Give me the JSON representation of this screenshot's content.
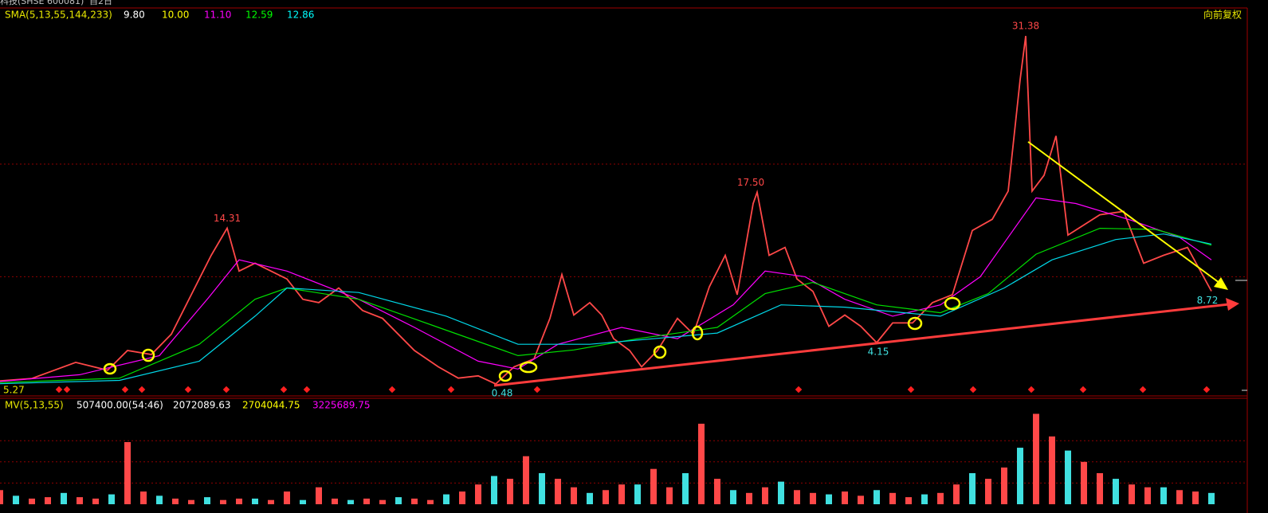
{
  "header": {
    "title": "科技(SHSE 600081)",
    "period": "自2日",
    "adjust": "向前复权",
    "corner_label": "5.27"
  },
  "chart_data": [
    {
      "type": "line",
      "legend_title": "SMA(5,13,55,144,233)",
      "legend_values": [
        9.8,
        10,
        11.1,
        12.59,
        12.86
      ],
      "legend_value_labels": [
        "9.80",
        "10.00",
        "11.10",
        "12.59",
        "12.86"
      ],
      "legend_colors": [
        "#ffffff",
        "#ffff00",
        "#ff00ff",
        "#00ff00",
        "#00ffff"
      ],
      "xlim": [
        0,
        1565
      ],
      "ylim": [
        -0.58,
        33.86
      ],
      "yticks": [
        10,
        20
      ],
      "grid": true,
      "series": [
        {
          "color": "#ff4848",
          "x": [
            0,
            40,
            95,
            135,
            160,
            190,
            215,
            240,
            265,
            285,
            300,
            320,
            360,
            380,
            400,
            425,
            455,
            480,
            520,
            550,
            575,
            600,
            622,
            645,
            670,
            690,
            705,
            720,
            740,
            755,
            770,
            790,
            805,
            825,
            850,
            870,
            890,
            910,
            925,
            945,
            950,
            965,
            985,
            1000,
            1020,
            1040,
            1060,
            1080,
            1100,
            1120,
            1145,
            1170,
            1195,
            1220,
            1245,
            1265,
            1280,
            1287,
            1295,
            1310,
            1325,
            1340,
            1380,
            1410,
            1435,
            1460,
            1490,
            1520
          ],
          "values": [
            0.76,
            0.97,
            2.4,
            1.7,
            3.45,
            3.1,
            4.9,
            8.4,
            11.9,
            14.31,
            10.5,
            11.2,
            9.8,
            8.0,
            7.7,
            9.0,
            7.0,
            6.3,
            3.45,
            2.0,
            1.0,
            1.2,
            0.48,
            2.0,
            2.7,
            6.3,
            10.2,
            6.6,
            7.7,
            6.6,
            4.5,
            3.45,
            2.0,
            3.45,
            6.3,
            4.9,
            9.1,
            11.9,
            8.4,
            16.5,
            17.5,
            11.9,
            12.6,
            9.8,
            8.7,
            5.6,
            6.6,
            5.6,
            4.15,
            5.9,
            5.9,
            7.7,
            8.4,
            14.1,
            15.1,
            17.6,
            27.5,
            31.38,
            17.6,
            19.0,
            22.5,
            13.7,
            15.5,
            15.8,
            11.2,
            11.9,
            12.6,
            8.72
          ]
        },
        {
          "color": "#ff00ff",
          "x": [
            0,
            100,
            200,
            260,
            300,
            360,
            450,
            520,
            600,
            650,
            700,
            780,
            850,
            920,
            960,
            1010,
            1060,
            1120,
            1180,
            1230,
            1270,
            1300,
            1350,
            1420,
            1480,
            1520
          ],
          "values": [
            0.7,
            1.3,
            3.0,
            8,
            11.5,
            10.5,
            8,
            5.5,
            2.5,
            1.8,
            4,
            5.5,
            4.5,
            7.5,
            10.5,
            10,
            8,
            6.5,
            7.5,
            10,
            14,
            17,
            16.5,
            15,
            13.5,
            11.5
          ]
        },
        {
          "color": "#00e000",
          "x": [
            0,
            150,
            250,
            320,
            360,
            450,
            550,
            650,
            720,
            800,
            900,
            960,
            1020,
            1100,
            1180,
            1240,
            1300,
            1380,
            1450,
            1520
          ],
          "values": [
            0.6,
            1.0,
            4,
            8,
            9,
            8,
            5.5,
            3,
            3.5,
            4.5,
            5.5,
            8.5,
            9.5,
            7.5,
            6.8,
            8.5,
            12,
            14.3,
            14.2,
            12.8
          ]
        },
        {
          "color": "#00d8e8",
          "x": [
            0,
            150,
            250,
            320,
            360,
            450,
            560,
            650,
            740,
            820,
            900,
            980,
            1060,
            1180,
            1260,
            1320,
            1400,
            1460,
            1520
          ],
          "values": [
            0.5,
            0.8,
            2.5,
            6.5,
            9,
            8.6,
            6.5,
            4,
            4,
            4.5,
            5,
            7.5,
            7.3,
            6.5,
            9,
            11.5,
            13.3,
            13.8,
            12.9
          ]
        }
      ],
      "annotations": [
        {
          "x": 285,
          "value": 14.31,
          "color": "#ff4848",
          "place": "above"
        },
        {
          "x": 942,
          "value": 17.5,
          "label": "17.50",
          "color": "#ff4848",
          "place": "above"
        },
        {
          "x": 1287,
          "value": 31.38,
          "color": "#ff4848",
          "place": "above"
        },
        {
          "x": 630,
          "value": 0.48,
          "color": "#40e0e0",
          "place": "below"
        },
        {
          "x": 1102,
          "value": 4.15,
          "color": "#40e0e0",
          "place": "below"
        },
        {
          "x": 1515,
          "value": 8.72,
          "color": "#40e0e0",
          "place": "below"
        }
      ]
    },
    {
      "type": "bar",
      "legend_title": "MV(5,13,55)",
      "legend_values": [
        507400,
        2072089.63,
        2704044.75,
        3225689.75
      ],
      "legend_value_labels": [
        "507400.00(54:46)",
        "2072089.63",
        "2704044.75",
        "3225689.75"
      ],
      "legend_colors": [
        "#ffffff",
        "#ffffff",
        "#ffff00",
        "#ff00ff"
      ],
      "up_color": "#ff4848",
      "down_color": "#40e0e0",
      "xlim": [
        0,
        1565
      ],
      "ylim": [
        0,
        75000000
      ],
      "yticks": [
        15000000,
        30000000,
        45000000
      ],
      "grid": true,
      "x": [
        0,
        20,
        40,
        60,
        80,
        100,
        120,
        140,
        160,
        180,
        200,
        220,
        240,
        260,
        280,
        300,
        320,
        340,
        360,
        380,
        400,
        420,
        440,
        460,
        480,
        500,
        520,
        540,
        560,
        580,
        600,
        620,
        640,
        660,
        680,
        700,
        720,
        740,
        760,
        780,
        800,
        820,
        840,
        860,
        880,
        900,
        920,
        940,
        960,
        980,
        1000,
        1020,
        1040,
        1060,
        1080,
        1100,
        1120,
        1140,
        1160,
        1180,
        1200,
        1220,
        1240,
        1260,
        1280,
        1300,
        1320,
        1340,
        1360,
        1380,
        1400,
        1420,
        1440,
        1460,
        1480,
        1500,
        1520
      ],
      "values": [
        10000000,
        6000000,
        4000000,
        5000000,
        8000000,
        5000000,
        4000000,
        7000000,
        44000000,
        9000000,
        6000000,
        4000000,
        3000000,
        5000000,
        3000000,
        4000000,
        4000000,
        3000000,
        9000000,
        3000000,
        12000000,
        4000000,
        3000000,
        4000000,
        3000000,
        5000000,
        4000000,
        3000000,
        7000000,
        9000000,
        14000000,
        20000000,
        18000000,
        34000000,
        22000000,
        18000000,
        12000000,
        8000000,
        10000000,
        14000000,
        14000000,
        25000000,
        12000000,
        22000000,
        57000000,
        18000000,
        10000000,
        8000000,
        12000000,
        16000000,
        10000000,
        8000000,
        7000000,
        9000000,
        6000000,
        10000000,
        8000000,
        5000000,
        7000000,
        8000000,
        14000000,
        22000000,
        18000000,
        26000000,
        40000000,
        64000000,
        48000000,
        38000000,
        30000000,
        22000000,
        18000000,
        14000000,
        12000000,
        12000000,
        10000000,
        9000000,
        8000000
      ]
    }
  ]
}
